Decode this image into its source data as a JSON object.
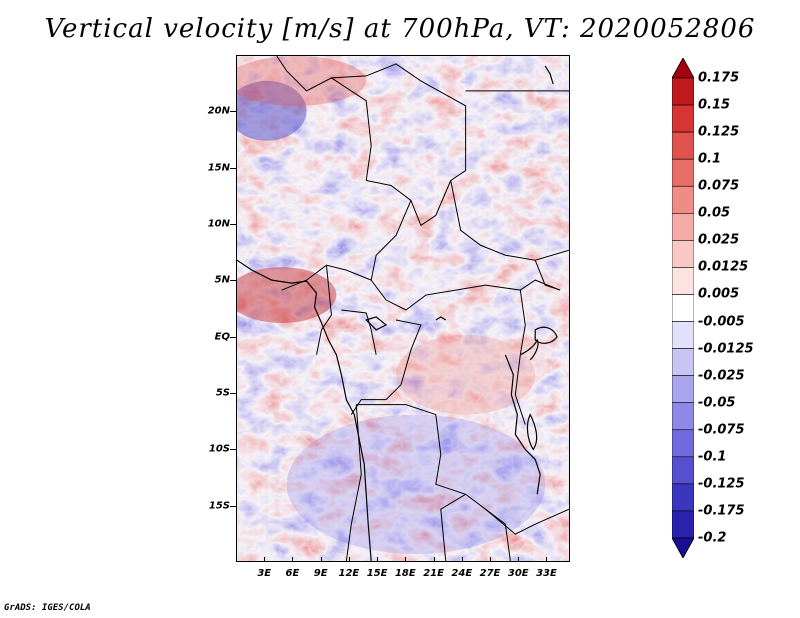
{
  "title": "Vertical velocity [m/s] at 700hPa, VT: 2020052806",
  "footer": "GrADS: IGES/COLA",
  "map": {
    "lat_labels": [
      {
        "text": "20N",
        "lat": 20
      },
      {
        "text": "15N",
        "lat": 15
      },
      {
        "text": "10N",
        "lat": 10
      },
      {
        "text": "5N",
        "lat": 5
      },
      {
        "text": "EQ",
        "lat": 0
      },
      {
        "text": "5S",
        "lat": -5
      },
      {
        "text": "10S",
        "lat": -10
      },
      {
        "text": "15S",
        "lat": -15
      }
    ],
    "lon_labels": [
      {
        "text": "3E",
        "lon": 3
      },
      {
        "text": "6E",
        "lon": 6
      },
      {
        "text": "9E",
        "lon": 9
      },
      {
        "text": "12E",
        "lon": 12
      },
      {
        "text": "15E",
        "lon": 15
      },
      {
        "text": "18E",
        "lon": 18
      },
      {
        "text": "21E",
        "lon": 21
      },
      {
        "text": "24E",
        "lon": 24
      },
      {
        "text": "27E",
        "lon": 27
      },
      {
        "text": "30E",
        "lon": 30
      },
      {
        "text": "33E",
        "lon": 33
      }
    ],
    "lon_range": [
      0,
      35.5
    ],
    "lat_range": [
      -20,
      25
    ]
  },
  "colorbar": {
    "levels": [
      "0.175",
      "0.15",
      "0.125",
      "0.1",
      "0.075",
      "0.05",
      "0.025",
      "0.0125",
      "0.005",
      "-0.005",
      "-0.0125",
      "-0.025",
      "-0.05",
      "-0.075",
      "-0.1",
      "-0.125",
      "-0.175",
      "-0.2"
    ],
    "colors": [
      "#a5000d",
      "#c01a1e",
      "#d63533",
      "#e0524e",
      "#e86e68",
      "#ef8c86",
      "#f4aaa5",
      "#f9c8c4",
      "#fde3e0",
      "#ffffff",
      "#e2e0fb",
      "#c8c4f4",
      "#aaa6ee",
      "#8e88e6",
      "#726adc",
      "#5650cf",
      "#3b36c0",
      "#2a21ad",
      "#1a0d96"
    ]
  }
}
